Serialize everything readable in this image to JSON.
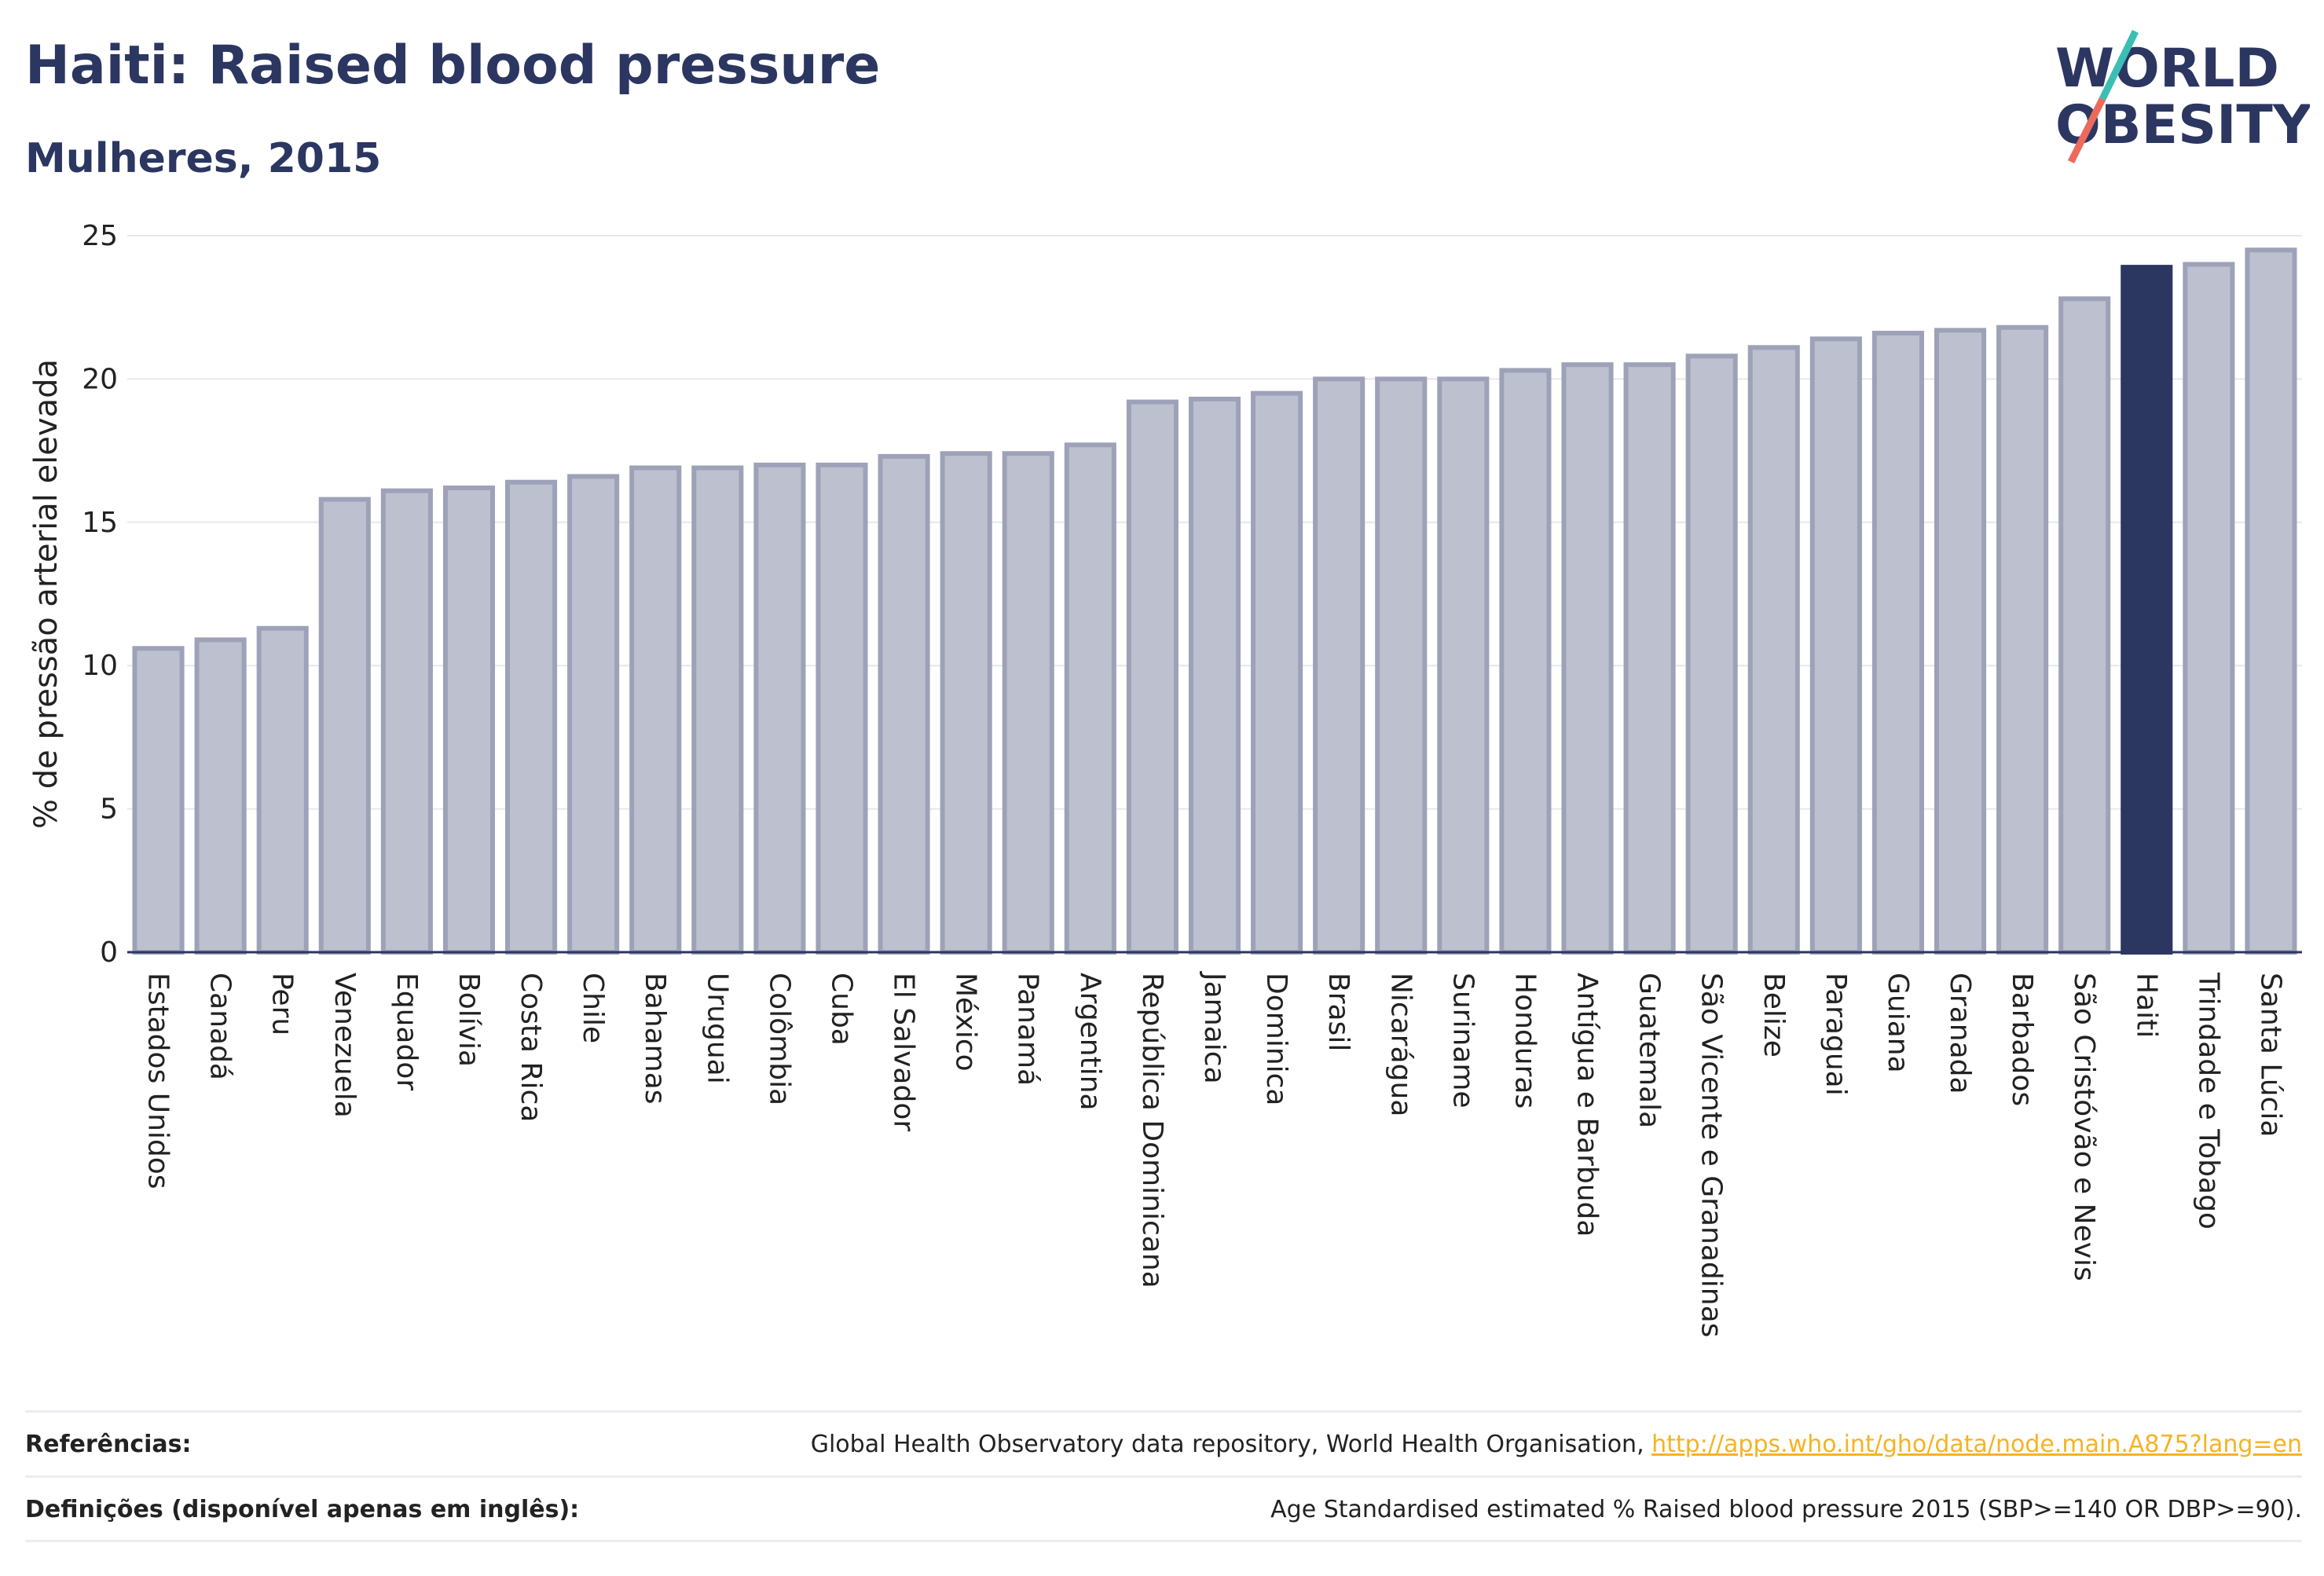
{
  "title": "Haiti: Raised blood pressure",
  "subtitle": "Mulheres, 2015",
  "logo": {
    "line1": "WORLD",
    "line2": "OBESITY"
  },
  "colors": {
    "bar": "#bdc1cf",
    "bar_edge": "#9da2b8",
    "highlight": "#2b3661",
    "text": "#2b3661",
    "link": "#f5b324",
    "grid": "#e6e7ee"
  },
  "chart_data": {
    "type": "bar",
    "ylabel": "% de pressão arterial elevada",
    "ylim": [
      0,
      25
    ],
    "yticks": [
      0,
      5,
      10,
      15,
      20,
      25
    ],
    "highlight": "Haiti",
    "categories": [
      "Estados Unidos",
      "Canadá",
      "Peru",
      "Venezuela",
      "Equador",
      "Bolívia",
      "Costa Rica",
      "Chile",
      "Bahamas",
      "Uruguai",
      "Colômbia",
      "Cuba",
      "El Salvador",
      "México",
      "Panamá",
      "Argentina",
      "República Dominicana",
      "Jamaica",
      "Dominica",
      "Brasil",
      "Nicarágua",
      "Suriname",
      "Honduras",
      "Antígua e Barbuda",
      "Guatemala",
      "São Vicente e Granadinas",
      "Belize",
      "Paraguai",
      "Guiana",
      "Granada",
      "Barbados",
      "São Cristóvão e Nevis",
      "Haiti",
      "Trindade e Tobago",
      "Santa Lúcia"
    ],
    "values": [
      10.6,
      10.9,
      11.3,
      15.8,
      16.1,
      16.2,
      16.4,
      16.6,
      16.9,
      16.9,
      17.0,
      17.0,
      17.3,
      17.4,
      17.4,
      17.7,
      19.2,
      19.3,
      19.5,
      20.0,
      20.0,
      20.0,
      20.3,
      20.5,
      20.5,
      20.8,
      21.1,
      21.4,
      21.6,
      21.7,
      21.8,
      22.8,
      23.9,
      24.0,
      24.5
    ]
  },
  "footer": {
    "ref_label": "Referências:",
    "ref_text": "Global Health Observatory data repository, World Health Organisation, ",
    "ref_link": "http://apps.who.int/gho/data/node.main.A875?lang=en",
    "def_label": "Definições (disponível apenas em inglês):",
    "def_text": "Age Standardised estimated % Raised blood pressure 2015 (SBP>=140 OR DBP>=90)."
  }
}
